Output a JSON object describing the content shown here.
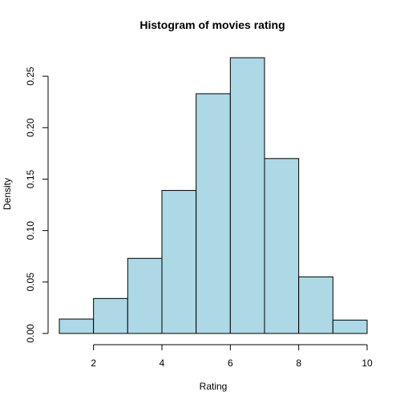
{
  "chart_data": {
    "type": "bar",
    "title": "Histogram of movies rating",
    "xlabel": "Rating",
    "ylabel": "Density",
    "bins": [
      [
        1,
        2
      ],
      [
        2,
        3
      ],
      [
        3,
        4
      ],
      [
        4,
        5
      ],
      [
        5,
        6
      ],
      [
        6,
        7
      ],
      [
        7,
        8
      ],
      [
        8,
        9
      ],
      [
        9,
        10
      ]
    ],
    "values": [
      0.014,
      0.034,
      0.073,
      0.139,
      0.233,
      0.268,
      0.17,
      0.055,
      0.013
    ],
    "xlim": [
      1,
      10
    ],
    "ylim": [
      0,
      0.27
    ],
    "x_ticks": [
      2,
      4,
      6,
      8,
      10
    ],
    "x_tick_labels": [
      "2",
      "4",
      "6",
      "8",
      "10"
    ],
    "y_ticks": [
      0,
      0.05,
      0.1,
      0.15,
      0.2,
      0.25
    ],
    "y_tick_labels": [
      "0.00",
      "0.05",
      "0.10",
      "0.15",
      "0.20",
      "0.25"
    ],
    "bar_color": "#add8e6",
    "grid": false,
    "legend": "none"
  }
}
